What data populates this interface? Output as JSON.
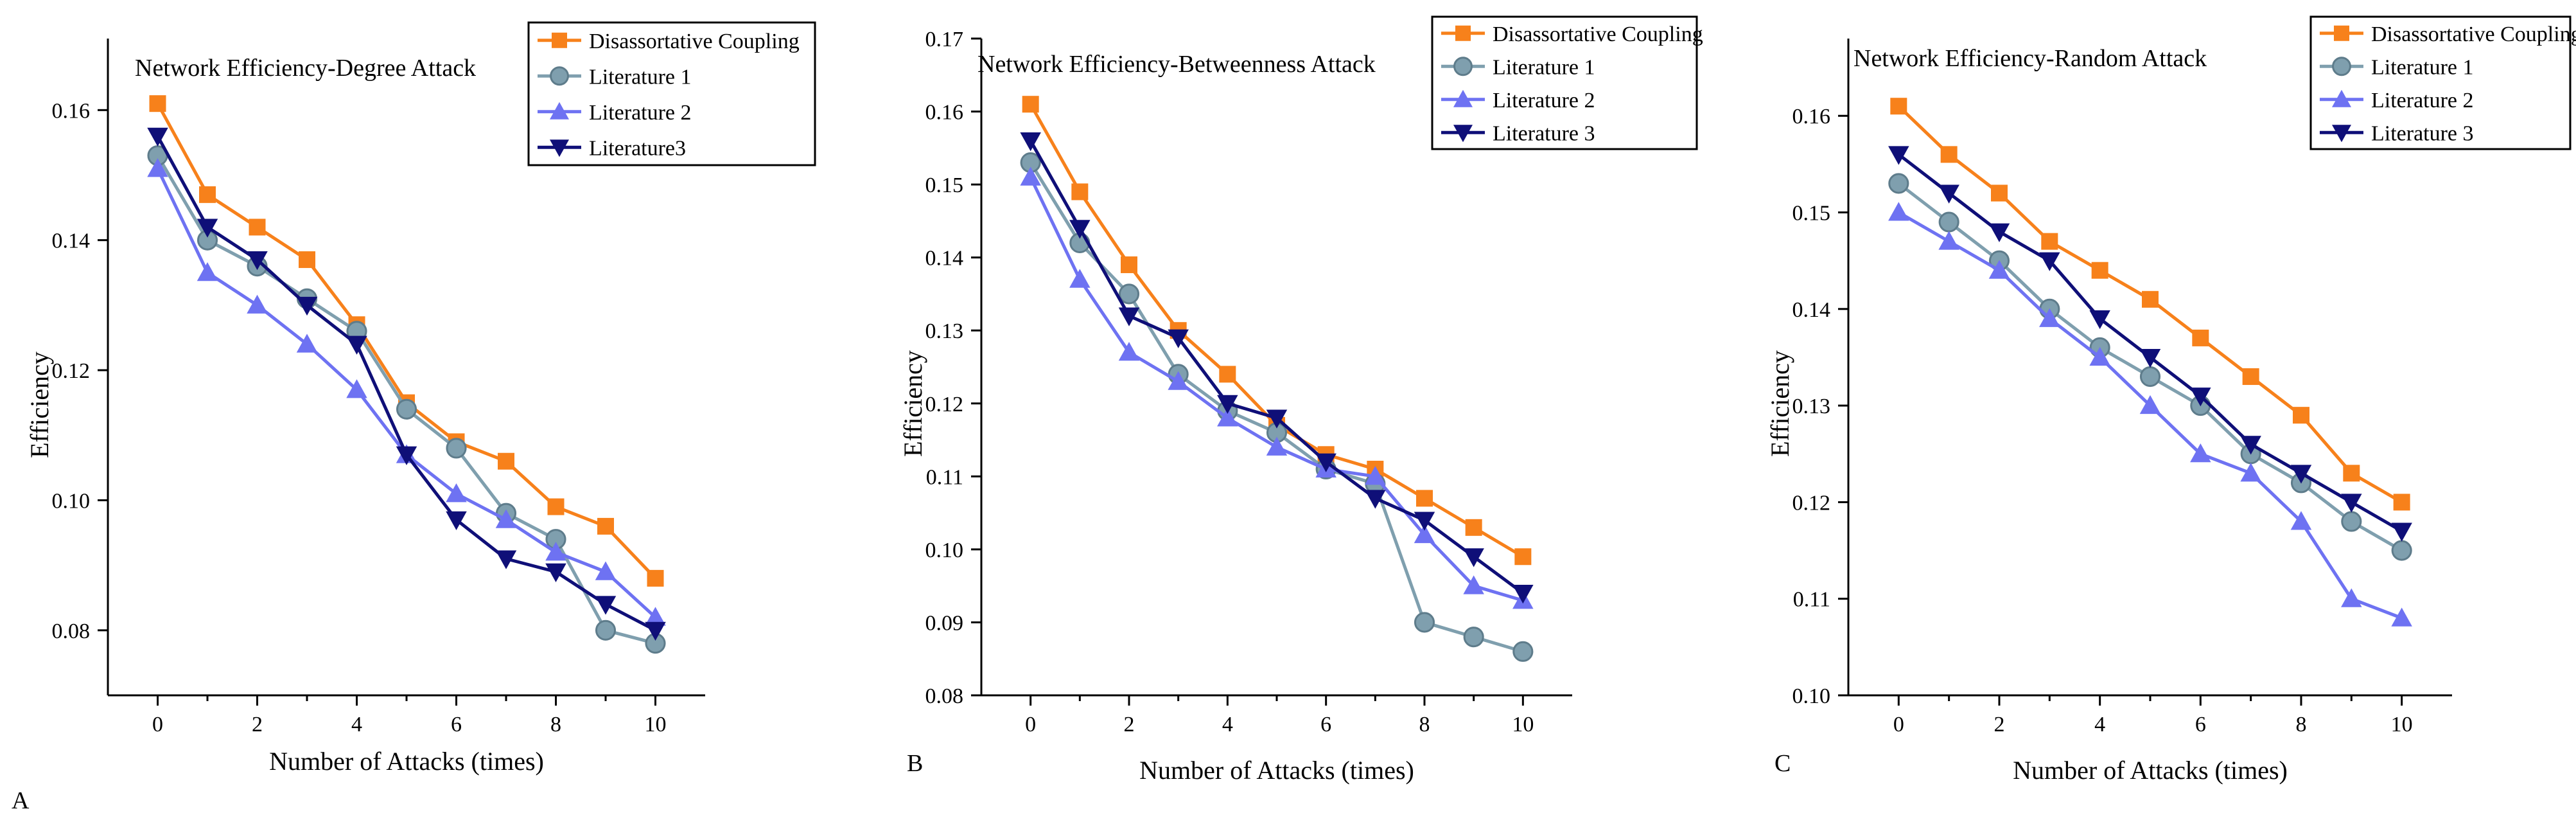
{
  "colors": {
    "disassortative": "#F7811B",
    "literature1": "#7F9FAE",
    "literature2": "#6E72F2",
    "literature3": "#0F0F78",
    "axis": "#000000"
  },
  "chart_data": [
    {
      "type": "line",
      "panel_label": "A",
      "title": "Network Efficiency-Degree Attack",
      "xlabel": "Number of Attacks (times)",
      "ylabel": "Efficiency",
      "xlim": [
        -1,
        11
      ],
      "ylim": [
        0.07,
        0.171
      ],
      "xticks": [
        0,
        2,
        4,
        6,
        8,
        10
      ],
      "yticks": [
        0.08,
        0.1,
        0.12,
        0.14,
        0.16
      ],
      "ytick_labels": [
        "0.08",
        "0.10",
        "0.12",
        "0.14",
        "0.16"
      ],
      "x": [
        0,
        1,
        2,
        3,
        4,
        5,
        6,
        7,
        8,
        9,
        10
      ],
      "legend_position": "top-right",
      "series": [
        {
          "name": "Disassortative Coupling",
          "color_key": "disassortative",
          "marker": "square",
          "values": [
            0.161,
            0.147,
            0.142,
            0.137,
            0.127,
            0.115,
            0.109,
            0.106,
            0.099,
            0.096,
            0.088
          ]
        },
        {
          "name": "Literature 1",
          "color_key": "literature1",
          "marker": "circle",
          "values": [
            0.153,
            0.14,
            0.136,
            0.131,
            0.126,
            0.114,
            0.108,
            0.098,
            0.094,
            0.08,
            0.078
          ]
        },
        {
          "name": "Literature 2",
          "color_key": "literature2",
          "marker": "triangle-up",
          "values": [
            0.151,
            0.135,
            0.13,
            0.124,
            0.117,
            0.107,
            0.101,
            0.097,
            0.092,
            0.089,
            0.082
          ]
        },
        {
          "name": "Literature3",
          "color_key": "literature3",
          "marker": "triangle-down",
          "values": [
            0.156,
            0.142,
            0.137,
            0.13,
            0.124,
            0.107,
            0.097,
            0.091,
            0.089,
            0.084,
            0.08
          ]
        }
      ]
    },
    {
      "type": "line",
      "panel_label": "B",
      "title": "Network Efficiency-Betweenness Attack",
      "xlabel": "Number of Attacks (times)",
      "ylabel": "Efficiency",
      "xlim": [
        -1,
        11
      ],
      "ylim": [
        0.08,
        0.17
      ],
      "xticks": [
        0,
        2,
        4,
        6,
        8,
        10
      ],
      "yticks": [
        0.08,
        0.09,
        0.1,
        0.11,
        0.12,
        0.13,
        0.14,
        0.15,
        0.16,
        0.17
      ],
      "ytick_labels": [
        "0.08",
        "0.09",
        "0.10",
        "0.11",
        "0.12",
        "0.13",
        "0.14",
        "0.15",
        "0.16",
        "0.17"
      ],
      "x": [
        0,
        1,
        2,
        3,
        4,
        5,
        6,
        7,
        8,
        9,
        10
      ],
      "legend_position": "top-right",
      "series": [
        {
          "name": "Disassortative Coupling",
          "color_key": "disassortative",
          "marker": "square",
          "values": [
            0.161,
            0.149,
            0.139,
            0.13,
            0.124,
            0.117,
            0.113,
            0.111,
            0.107,
            0.103,
            0.099
          ]
        },
        {
          "name": "Literature 1",
          "color_key": "literature1",
          "marker": "circle",
          "values": [
            0.153,
            0.142,
            0.135,
            0.124,
            0.119,
            0.116,
            0.111,
            0.109,
            0.09,
            0.088,
            0.086
          ]
        },
        {
          "name": "Literature 2",
          "color_key": "literature2",
          "marker": "triangle-up",
          "values": [
            0.151,
            0.137,
            0.127,
            0.123,
            0.118,
            0.114,
            0.111,
            0.11,
            0.102,
            0.095,
            0.093
          ]
        },
        {
          "name": "Literature 3",
          "color_key": "literature3",
          "marker": "triangle-down",
          "values": [
            0.156,
            0.144,
            0.132,
            0.129,
            0.12,
            0.118,
            0.112,
            0.107,
            0.104,
            0.099,
            0.094
          ]
        }
      ]
    },
    {
      "type": "line",
      "panel_label": "C",
      "title": "Network Efficiency-Random Attack",
      "xlabel": "Number of Attacks (times)",
      "ylabel": "Efficiency",
      "xlim": [
        -1,
        11
      ],
      "ylim": [
        0.1,
        0.168
      ],
      "xticks": [
        0,
        2,
        4,
        6,
        8,
        10
      ],
      "yticks": [
        0.1,
        0.11,
        0.12,
        0.13,
        0.14,
        0.15,
        0.16
      ],
      "ytick_labels": [
        "0.10",
        "0.11",
        "0.12",
        "0.13",
        "0.14",
        "0.15",
        "0.16"
      ],
      "x": [
        0,
        1,
        2,
        3,
        4,
        5,
        6,
        7,
        8,
        9,
        10
      ],
      "legend_position": "top-right",
      "series": [
        {
          "name": "Disassortative Coupling",
          "color_key": "disassortative",
          "marker": "square",
          "values": [
            0.161,
            0.156,
            0.152,
            0.147,
            0.144,
            0.141,
            0.137,
            0.133,
            0.129,
            0.123,
            0.12
          ]
        },
        {
          "name": "Literature 1",
          "color_key": "literature1",
          "marker": "circle",
          "values": [
            0.153,
            0.149,
            0.145,
            0.14,
            0.136,
            0.133,
            0.13,
            0.125,
            0.122,
            0.118,
            0.115
          ]
        },
        {
          "name": "Literature 2",
          "color_key": "literature2",
          "marker": "triangle-up",
          "values": [
            0.15,
            0.147,
            0.144,
            0.139,
            0.135,
            0.13,
            0.125,
            0.123,
            0.118,
            0.11,
            0.108
          ]
        },
        {
          "name": "Literature 3",
          "color_key": "literature3",
          "marker": "triangle-down",
          "values": [
            0.156,
            0.152,
            0.148,
            0.145,
            0.139,
            0.135,
            0.131,
            0.126,
            0.123,
            0.12,
            0.117
          ]
        }
      ]
    }
  ]
}
